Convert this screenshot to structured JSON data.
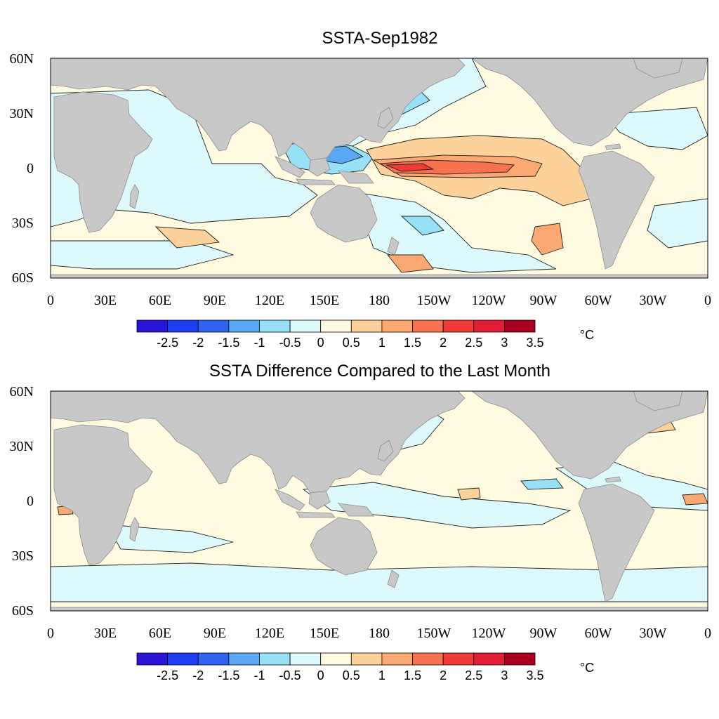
{
  "panels": [
    {
      "title": "SSTA-Sep1982",
      "lat_labels": [
        "60N",
        "30N",
        "0",
        "30S",
        "60S"
      ],
      "lon_labels": [
        "0",
        "30E",
        "60E",
        "90E",
        "120E",
        "150E",
        "180",
        "150W",
        "120W",
        "90W",
        "60W",
        "30W",
        "0"
      ],
      "colorbar": {
        "colors": [
          "#2a14d6",
          "#1e3cf0",
          "#2f64f0",
          "#5aa8f5",
          "#96e1f5",
          "#dcf9fb",
          "#fefbe0",
          "#fdd29a",
          "#fca872",
          "#f7734f",
          "#f03a36",
          "#e01e37",
          "#a8001e"
        ],
        "tick_labels": [
          "-2.5",
          "-2",
          "-1.5",
          "-1",
          "-0.5",
          "0",
          "0.5",
          "1",
          "1.5",
          "2",
          "2.5",
          "3",
          "3.5"
        ],
        "unit": "°C"
      }
    },
    {
      "title": "SSTA Difference Compared to the Last Month",
      "lat_labels": [
        "60N",
        "30N",
        "0",
        "30S",
        "60S"
      ],
      "lon_labels": [
        "0",
        "30E",
        "60E",
        "90E",
        "120E",
        "150E",
        "180",
        "150W",
        "120W",
        "90W",
        "60W",
        "30W",
        "0"
      ],
      "colorbar": {
        "colors": [
          "#2a14d6",
          "#1e3cf0",
          "#2f64f0",
          "#5aa8f5",
          "#96e1f5",
          "#dcf9fb",
          "#fefbe0",
          "#fdd29a",
          "#fca872",
          "#f7734f",
          "#f03a36",
          "#e01e37",
          "#a8001e"
        ],
        "tick_labels": [
          "-2.5",
          "-2",
          "-1.5",
          "-1",
          "-0.5",
          "0",
          "0.5",
          "1",
          "1.5",
          "2",
          "2.5",
          "3",
          "3.5"
        ],
        "unit": "°C"
      }
    }
  ]
}
